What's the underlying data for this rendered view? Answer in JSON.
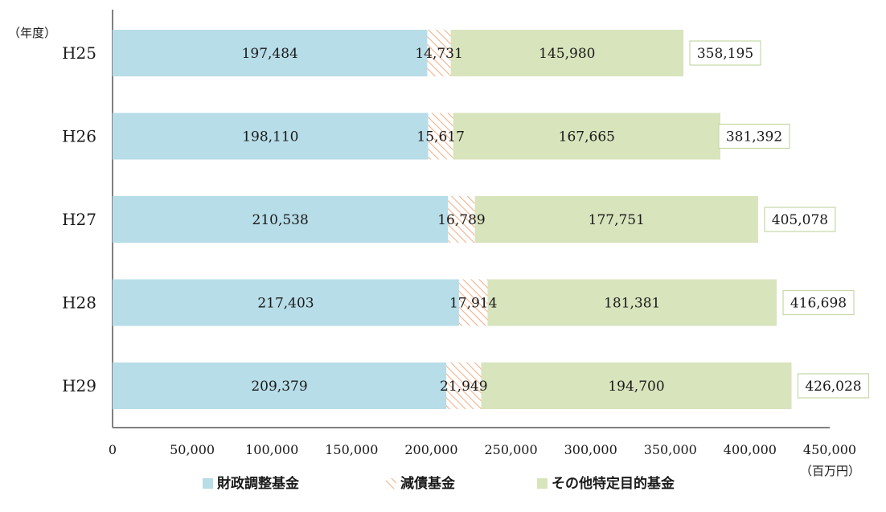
{
  "chart_data": {
    "type": "bar",
    "orientation": "horizontal",
    "stacked": true,
    "categories": [
      "H25",
      "H26",
      "H27",
      "H28",
      "H29"
    ],
    "series": [
      {
        "name": "財政調整基金",
        "values": [
          197484,
          198110,
          210538,
          217403,
          209379
        ],
        "color": "#b7dde8",
        "pattern": "solid"
      },
      {
        "name": "減債基金",
        "values": [
          14731,
          15617,
          16789,
          17914,
          21949
        ],
        "color": "#f4c6a8",
        "pattern": "hatch"
      },
      {
        "name": "その他特定目的基金",
        "values": [
          145980,
          167665,
          177751,
          181381,
          194700
        ],
        "color": "#d8e4bc",
        "pattern": "solid"
      }
    ],
    "totals": [
      358195,
      381392,
      405078,
      416698,
      426028
    ],
    "value_labels": {
      "series": [
        [
          "197,484",
          "198,110",
          "210,538",
          "217,403",
          "209,379"
        ],
        [
          "14,731",
          "15,617",
          "16,789",
          "17,914",
          "21,949"
        ],
        [
          "145,980",
          "167,665",
          "177,751",
          "181,381",
          "194,700"
        ]
      ],
      "totals": [
        "358,195",
        "381,392",
        "405,078",
        "416,698",
        "426,028"
      ]
    },
    "x_ticks": [
      0,
      50000,
      100000,
      150000,
      200000,
      250000,
      300000,
      350000,
      400000,
      450000
    ],
    "x_tick_labels": [
      "0",
      "50,000",
      "100,000",
      "150,000",
      "200,000",
      "250,000",
      "300,000",
      "350,000",
      "400,000",
      "450,000"
    ],
    "xlim": [
      0,
      450000
    ],
    "y_unit_label": "（年度）",
    "x_unit_label": "（百万円）",
    "total_box_border_color": "#c5d9a5",
    "legend_position": "bottom",
    "grid": false
  }
}
